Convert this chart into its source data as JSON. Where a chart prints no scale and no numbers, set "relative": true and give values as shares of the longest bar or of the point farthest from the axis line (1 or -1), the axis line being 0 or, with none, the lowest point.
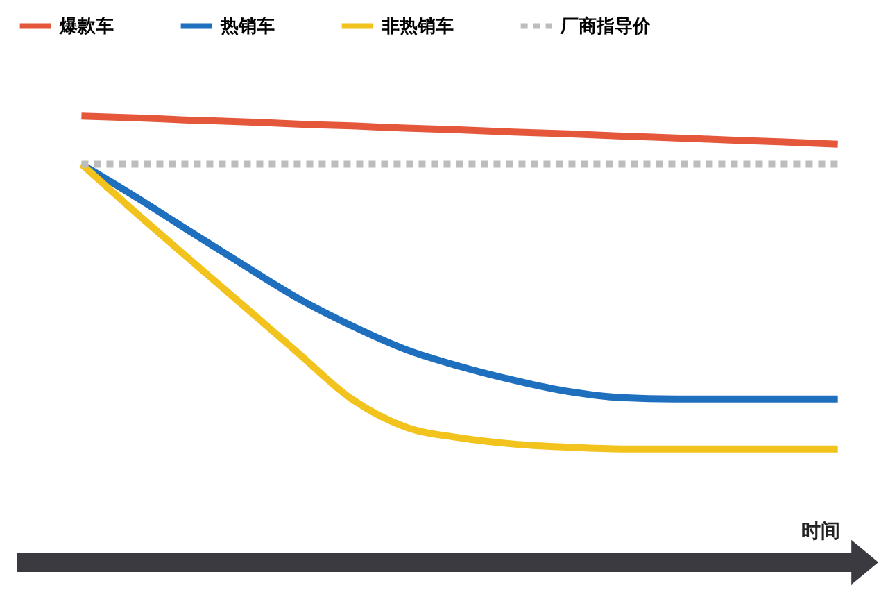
{
  "chart_data": {
    "type": "line",
    "relative": true,
    "xlabel": "时间",
    "legend": "top",
    "categories": [
      null,
      null,
      null,
      null,
      null,
      null,
      null,
      null,
      null,
      null,
      null,
      null,
      null,
      null,
      null
    ],
    "series": [
      {
        "name": "爆款车",
        "color": "#e4573b",
        "values": [
          1,
          0.996,
          0.991,
          0.987,
          0.982,
          0.978,
          0.973,
          0.969,
          0.964,
          0.96,
          0.955,
          0.951,
          0.946,
          0.942,
          0.937
        ]
      },
      {
        "name": "热销车",
        "color": "#1f6fbf",
        "values": [
          0.892,
          0.819,
          0.742,
          0.666,
          0.592,
          0.53,
          0.477,
          0.439,
          0.408,
          0.383,
          0.369,
          0.366,
          0.366,
          0.366,
          0.366
        ]
      },
      {
        "name": "非热销车",
        "color": "#f2c31c",
        "values": [
          0.892,
          0.784,
          0.679,
          0.575,
          0.47,
          0.366,
          0.303,
          0.279,
          0.265,
          0.258,
          0.254,
          0.254,
          0.254,
          0.254,
          0.254
        ]
      },
      {
        "name": "厂商指导价",
        "color": "#bdbdbd",
        "line_style": "dashed",
        "values": [
          0.892,
          0.892,
          0.892,
          0.892,
          0.892,
          0.892,
          0.892,
          0.892,
          0.892,
          0.892,
          0.892,
          0.892,
          0.892,
          0.892,
          0.892
        ]
      }
    ]
  }
}
